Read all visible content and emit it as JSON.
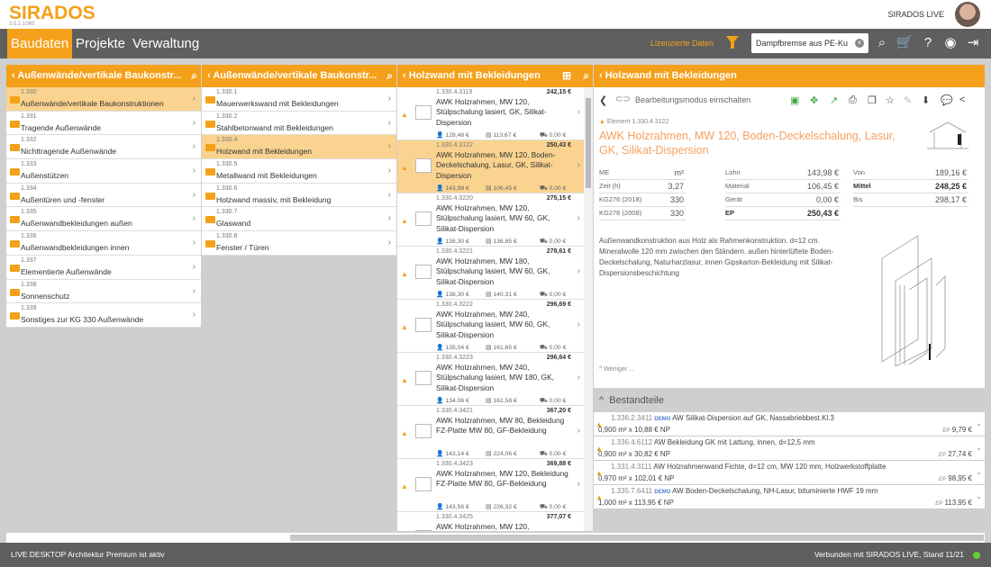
{
  "app": {
    "logo": "SIRADOS",
    "version": "3.5.1.1069",
    "user_label": "SIRADOS LIVE"
  },
  "nav": {
    "tabs": [
      {
        "label": "Baudaten",
        "active": true
      },
      {
        "label": "Projekte"
      },
      {
        "label": "Verwaltung"
      }
    ],
    "licensed": "Lizenzierte Daten",
    "search_value": "Dampfbremse aus PE-Ku",
    "icons": [
      "search-icon",
      "cart-icon",
      "help-icon",
      "user-icon",
      "logout-icon"
    ]
  },
  "col1": {
    "title": "Außenwände/vertikale Baukonstr...",
    "items": [
      {
        "code": "1.330",
        "label": "Außenwände/vertikale Baukonstruktionen",
        "selected": true
      },
      {
        "code": "1.331",
        "label": "Tragende Außenwände"
      },
      {
        "code": "1.332",
        "label": "Nichttragende Außenwände"
      },
      {
        "code": "1.333",
        "label": "Außenstützen"
      },
      {
        "code": "1.334",
        "label": "Außentüren und -fenster"
      },
      {
        "code": "1.335",
        "label": "Außenwandbekleidungen außen"
      },
      {
        "code": "1.336",
        "label": "Außenwandbekleidungen innen"
      },
      {
        "code": "1.337",
        "label": "Elementierte Außenwände"
      },
      {
        "code": "1.338",
        "label": "Sonnenschutz"
      },
      {
        "code": "1.339",
        "label": "Sonstiges zur KG 330 Außenwände"
      }
    ]
  },
  "col2": {
    "title": "Außenwände/vertikale Baukonstr...",
    "items": [
      {
        "code": "1.330.1",
        "label": "Mauerwerkswand mit Bekleidungen"
      },
      {
        "code": "1.330.2",
        "label": "Stahlbetonwand mit Bekleidungen"
      },
      {
        "code": "1.330.4",
        "label": "Holzwand mit Bekleidungen",
        "selected": true
      },
      {
        "code": "1.330.5",
        "label": "Metallwand mit Bekleidungen"
      },
      {
        "code": "1.330.6",
        "label": "Holzwand massiv, mit Bekleidung"
      },
      {
        "code": "1.330.7",
        "label": "Glaswand"
      },
      {
        "code": "1.330.8",
        "label": "Fenster / Türen"
      }
    ]
  },
  "col3": {
    "title": "Holzwand mit Bekleidungen",
    "items": [
      {
        "code": "1.330.4.3119",
        "price": "242,15 €",
        "name": "AWK Holzrahmen, MW 120, Stülpschalung lasiert, GK, Silikat-Dispersion",
        "lohn": "128,48 €",
        "material": "113,67 €",
        "geraet": "0,00 €"
      },
      {
        "code": "1.330.4.3122",
        "price": "250,43 €",
        "name": "AWK Holzrahmen, MW 120, Boden-Deckelschalung, Lasur, GK, Silikat-Dispersion",
        "lohn": "143,98 €",
        "material": "106,45 €",
        "geraet": "0,00 €",
        "selected": true
      },
      {
        "code": "1.330.4.3220",
        "price": "275,15 €",
        "name": "AWK Holzrahmen, MW 120, Stülpschalung lasiert, MW 60, GK, Silikat-Dispersion",
        "lohn": "138,30 €",
        "material": "136,85 €",
        "geraet": "0,00 €"
      },
      {
        "code": "1.330.4.3221",
        "price": "278,61 €",
        "name": "AWK Holzrahmen, MW 180, Stülpschalung lasiert, MW 60, GK, Silikat-Dispersion",
        "lohn": "138,30 €",
        "material": "140,31 €",
        "geraet": "0,00 €"
      },
      {
        "code": "1.330.4.3222",
        "price": "296,69 €",
        "name": "AWK Holzrahmen, MW 240, Stülpschalung lasiert, MW 60, GK, Silikat-Dispersion",
        "lohn": "135,04 €",
        "material": "161,65 €",
        "geraet": "0,00 €"
      },
      {
        "code": "1.330.4.3223",
        "price": "296,64 €",
        "name": "AWK Holzrahmen, MW 240, Stülpschalung lasiert, MW 180, GK, Silikat-Dispersion",
        "lohn": "134,06 €",
        "material": "162,58 €",
        "geraet": "0,00 €"
      },
      {
        "code": "1.330.4.3421",
        "price": "367,20 €",
        "name": "AWK Holzrahmen, MW 80, Bekleidung FZ-Platte MW 80, GF-Bekleidung",
        "lohn": "143,14 €",
        "material": "224,06 €",
        "geraet": "0,00 €"
      },
      {
        "code": "1.330.4.3423",
        "price": "369,88 €",
        "name": "AWK Holzrahmen, MW 120, Bekleidung FZ-Platte MW 80, GF-Bekleidung",
        "lohn": "143,56 €",
        "material": "226,32 €",
        "geraet": "0,00 €"
      },
      {
        "code": "1.330.4.3425",
        "price": "377,07 €",
        "name": "AWK Holzrahmen, MW 120,",
        "lohn": "",
        "material": "",
        "geraet": ""
      }
    ]
  },
  "detail": {
    "header": "Holzwand mit Bekleidungen",
    "edit_mode": "Bearbeitungsmodus einschalten",
    "element_label": "Element",
    "element_code": "1.330.4.3122",
    "title": "AWK Holzrahmen, MW 120, Boden-Deckelschalung, Lasur, GK, Silikat-Dispersion",
    "props1": [
      {
        "k": "ME",
        "v": "m²"
      },
      {
        "k": "Zeit (h)",
        "v": "3,27"
      },
      {
        "k": "KG276 (2018)",
        "v": "330"
      },
      {
        "k": "KG276 (2008)",
        "v": "330"
      }
    ],
    "props2": [
      {
        "k": "Lohn",
        "v": "143,98 €"
      },
      {
        "k": "Material",
        "v": "106,45 €"
      },
      {
        "k": "Gerät",
        "v": "0,00 €"
      },
      {
        "k": "EP",
        "v": "250,43 €",
        "bold": true
      }
    ],
    "props3": [
      {
        "k": "Von",
        "v": "189,16 €"
      },
      {
        "k": "Mittel",
        "v": "248,25 €",
        "bold": true
      },
      {
        "k": "Bis",
        "v": "298,17 €"
      }
    ],
    "description": "Außenwandkonstruktion aus Holz als Rahmenkonstruktion. d=12 cm. Mineralwolle 120 mm zwischen den Ständern. außen hinterlüftete Boden-Deckelschalung, Naturharzlasur, innen Gipskarton-Bekleidung mit Silikat-Dispersionsbeschichtung",
    "less": "Weniger ..."
  },
  "components": {
    "title": "Bestandteile",
    "items": [
      {
        "code": "1.336.2.3411",
        "demo": "DEMO",
        "name": "AW Silikat-Dispersion auf GK, Nassabriebbest.Kl.3",
        "qty": "0,900 m² x 10,88 € NP",
        "ep_label": "EP",
        "ep": "9,79 €"
      },
      {
        "code": "1.336.4.6112",
        "demo": "",
        "name": "AW Bekleidung GK mit Lattung, innen, d=12,5 mm",
        "qty": "0,900 m² x 30,82 € NP",
        "ep_label": "EP",
        "ep": "27,74 €"
      },
      {
        "code": "1.331.4.3111",
        "demo": "",
        "name": "AW Holzrahmenwand Fichte, d=12 cm, MW 120 mm, Holzwerkstoffplatte",
        "qty": "0,970 m² x 102,01 € NP",
        "ep_label": "EP",
        "ep": "98,95 €"
      },
      {
        "code": "1.335.7.6411",
        "demo": "DEMO",
        "name": "AW Boden-Deckelschalung, NH-Lasur, bituminierte HWF 19 mm",
        "qty": "1,000 m² x 113,95 € NP",
        "ep_label": "EP",
        "ep": "113,95 €"
      }
    ]
  },
  "footer": {
    "left": "LIVE DESKTOP Architektur Premium ist aktiv",
    "right": "Verbunden mit SIRADOS LIVE, Stand 11/21",
    "status_color": "#66cc33"
  },
  "colors": {
    "accent": "#f5a01a",
    "nav": "#5f5f5f"
  }
}
